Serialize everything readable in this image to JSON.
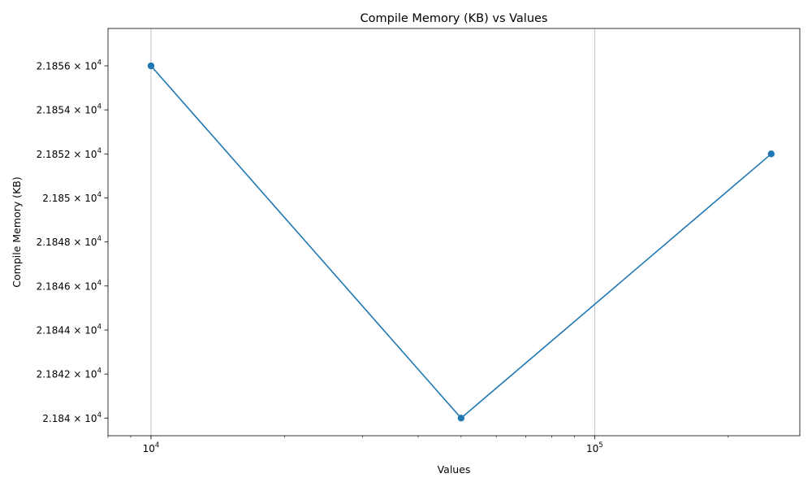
{
  "chart_data": {
    "type": "line",
    "title": "Compile Memory (KB) vs Values",
    "xlabel": "Values",
    "ylabel": "Compile Memory (KB)",
    "xscale": "log",
    "yscale": "log",
    "xlim": [
      8000,
      290000
    ],
    "ylim": [
      21839.2,
      21857.7
    ],
    "grid": "x-major",
    "series": [
      {
        "name": "Compile Memory (KB)",
        "color": "#1f77b4",
        "marker": "circle",
        "x": [
          10000,
          50000,
          250000
        ],
        "y": [
          21856,
          21840,
          21852
        ]
      }
    ],
    "x_major_ticks": [
      {
        "value": 10000,
        "mantissa": "10",
        "exponent": "4"
      },
      {
        "value": 100000,
        "mantissa": "10",
        "exponent": "5"
      }
    ],
    "x_minor_ticks": [
      8000,
      9000,
      20000,
      30000,
      40000,
      50000,
      60000,
      70000,
      80000,
      90000,
      200000
    ],
    "y_ticks": [
      {
        "value": 21840,
        "mantissa": "2.184",
        "base": "10",
        "exponent": "4"
      },
      {
        "value": 21842,
        "mantissa": "2.1842",
        "base": "10",
        "exponent": "4"
      },
      {
        "value": 21844,
        "mantissa": "2.1844",
        "base": "10",
        "exponent": "4"
      },
      {
        "value": 21846,
        "mantissa": "2.1846",
        "base": "10",
        "exponent": "4"
      },
      {
        "value": 21848,
        "mantissa": "2.1848",
        "base": "10",
        "exponent": "4"
      },
      {
        "value": 21850,
        "mantissa": "2.185",
        "base": "10",
        "exponent": "4"
      },
      {
        "value": 21852,
        "mantissa": "2.1852",
        "base": "10",
        "exponent": "4"
      },
      {
        "value": 21854,
        "mantissa": "2.1854",
        "base": "10",
        "exponent": "4"
      },
      {
        "value": 21856,
        "mantissa": "2.1856",
        "base": "10",
        "exponent": "4"
      }
    ],
    "colors": {
      "line": "#1f77b4",
      "grid": "#b0b0b0",
      "axes": "#000000"
    }
  }
}
